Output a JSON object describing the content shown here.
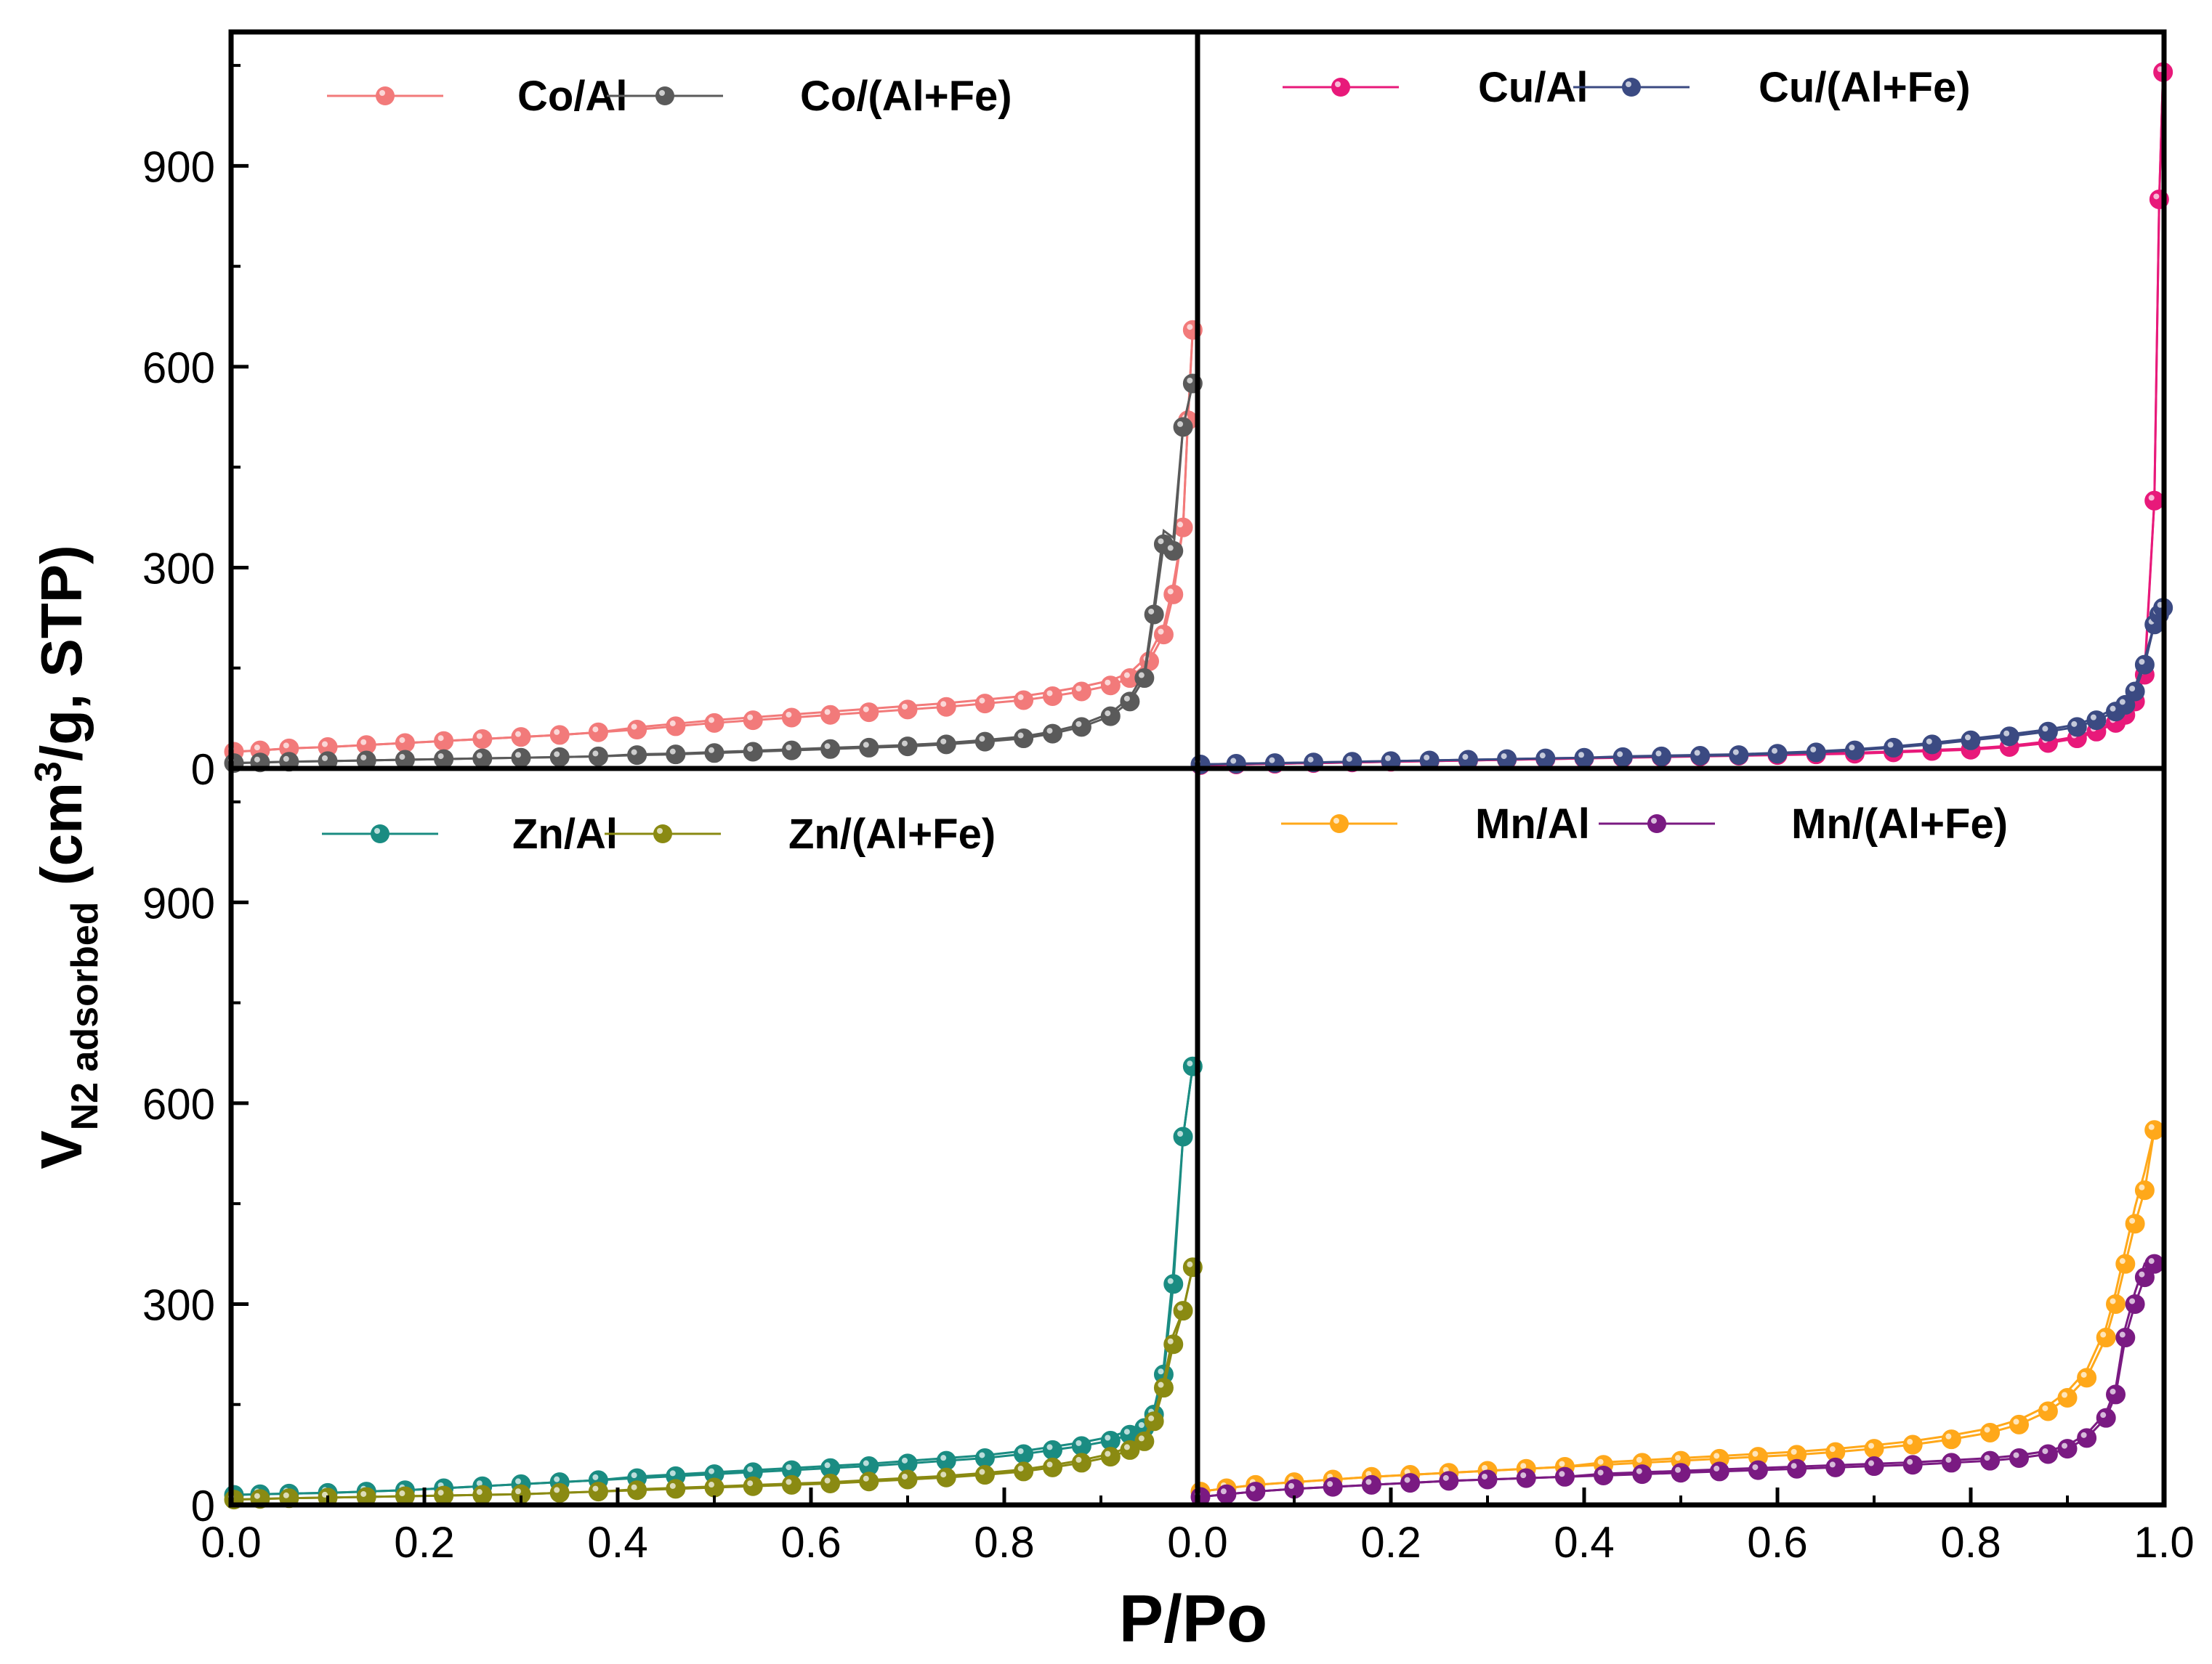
{
  "figure": {
    "xlabel": "P/Po",
    "ylabel_main": "V",
    "ylabel_sub": "N2 adsorbed",
    "ylabel_rest": " (cm",
    "ylabel_sup": "3",
    "ylabel_end": "/g, STP)"
  },
  "axes": {
    "x_ticks": [
      0.0,
      0.2,
      0.4,
      0.6,
      0.8,
      1.0
    ],
    "x_tick_labels_left": [
      "0.0",
      "0.2",
      "0.4",
      "0.6",
      "0.8",
      "0.0"
    ],
    "x_tick_labels_right": [
      "0.2",
      "0.4",
      "0.6",
      "0.8",
      "1.0"
    ],
    "y_ticks": [
      0,
      300,
      600,
      900
    ],
    "y_tick_labels": [
      "0",
      "300",
      "600",
      "900"
    ],
    "xlim": [
      0.0,
      1.0
    ],
    "ylim": [
      0,
      1100
    ]
  },
  "chart_data": [
    {
      "type": "line",
      "panel": "top-left",
      "title": "",
      "xlabel": "P/Po",
      "ylabel": "VN2 adsorbed (cm3/g, STP)",
      "xlim": [
        0.0,
        1.0
      ],
      "ylim": [
        0,
        1100
      ],
      "legend_position": "top",
      "series": [
        {
          "name": "Co/Al",
          "color": "#F27A7A",
          "x": [
            0.003,
            0.03,
            0.06,
            0.1,
            0.14,
            0.18,
            0.22,
            0.26,
            0.3,
            0.34,
            0.38,
            0.42,
            0.46,
            0.5,
            0.54,
            0.58,
            0.62,
            0.66,
            0.7,
            0.74,
            0.78,
            0.82,
            0.85,
            0.88,
            0.91,
            0.93,
            0.95,
            0.965,
            0.975,
            0.985,
            0.99,
            0.995
          ],
          "y": [
            25,
            27,
            30,
            32,
            35,
            38,
            41,
            44,
            47,
            50,
            54,
            58,
            63,
            68,
            72,
            76,
            80,
            84,
            88,
            92,
            97,
            102,
            108,
            115,
            124,
            135,
            160,
            200,
            260,
            360,
            520,
            655
          ]
        },
        {
          "name": "Co/(Al+Fe)",
          "color": "#5A5A5A",
          "x": [
            0.003,
            0.03,
            0.06,
            0.1,
            0.14,
            0.18,
            0.22,
            0.26,
            0.3,
            0.34,
            0.38,
            0.42,
            0.46,
            0.5,
            0.54,
            0.58,
            0.62,
            0.66,
            0.7,
            0.74,
            0.78,
            0.82,
            0.85,
            0.88,
            0.91,
            0.93,
            0.945,
            0.955,
            0.965,
            0.975,
            0.985,
            0.995
          ],
          "y": [
            8,
            9,
            10,
            11,
            12,
            13,
            14,
            15,
            16,
            17,
            18,
            20,
            21,
            23,
            25,
            27,
            29,
            31,
            33,
            36,
            40,
            45,
            52,
            62,
            78,
            100,
            135,
            230,
            335,
            325,
            510,
            575
          ]
        }
      ]
    },
    {
      "type": "line",
      "panel": "top-right",
      "title": "",
      "xlabel": "P/Po",
      "ylabel": "VN2 adsorbed (cm3/g, STP)",
      "xlim": [
        0.0,
        1.0
      ],
      "ylim": [
        0,
        1100
      ],
      "legend_position": "top",
      "series": [
        {
          "name": "Cu/Al",
          "color": "#E8197A",
          "x": [
            0.003,
            0.04,
            0.08,
            0.12,
            0.16,
            0.2,
            0.24,
            0.28,
            0.32,
            0.36,
            0.4,
            0.44,
            0.48,
            0.52,
            0.56,
            0.6,
            0.64,
            0.68,
            0.72,
            0.76,
            0.8,
            0.84,
            0.88,
            0.91,
            0.93,
            0.95,
            0.96,
            0.97,
            0.98,
            0.99,
            0.995,
            0.999
          ],
          "y": [
            5,
            6,
            7,
            8,
            9,
            10,
            11,
            12,
            13,
            14,
            15,
            16,
            17,
            18,
            19,
            20,
            21,
            22,
            24,
            26,
            28,
            32,
            38,
            45,
            55,
            68,
            80,
            100,
            140,
            400,
            850,
            1040
          ]
        },
        {
          "name": "Cu/(Al+Fe)",
          "color": "#3B4A82",
          "x": [
            0.003,
            0.04,
            0.08,
            0.12,
            0.16,
            0.2,
            0.24,
            0.28,
            0.32,
            0.36,
            0.4,
            0.44,
            0.48,
            0.52,
            0.56,
            0.6,
            0.64,
            0.68,
            0.72,
            0.76,
            0.8,
            0.84,
            0.88,
            0.91,
            0.93,
            0.95,
            0.96,
            0.97,
            0.98,
            0.99,
            0.995,
            0.999
          ],
          "y": [
            6,
            7,
            8,
            9,
            10,
            11,
            12,
            13,
            14,
            15,
            16,
            17,
            18,
            19,
            20,
            22,
            24,
            27,
            31,
            36,
            42,
            48,
            55,
            62,
            72,
            85,
            95,
            115,
            155,
            215,
            230,
            240
          ]
        }
      ]
    },
    {
      "type": "line",
      "panel": "bottom-left",
      "title": "",
      "xlabel": "P/Po",
      "ylabel": "VN2 adsorbed (cm3/g, STP)",
      "xlim": [
        0.0,
        1.0
      ],
      "ylim": [
        0,
        1100
      ],
      "legend_position": "top",
      "series": [
        {
          "name": "Zn/Al",
          "color": "#1A8C82",
          "x": [
            0.003,
            0.03,
            0.06,
            0.1,
            0.14,
            0.18,
            0.22,
            0.26,
            0.3,
            0.34,
            0.38,
            0.42,
            0.46,
            0.5,
            0.54,
            0.58,
            0.62,
            0.66,
            0.7,
            0.74,
            0.78,
            0.82,
            0.85,
            0.88,
            0.91,
            0.93,
            0.945,
            0.955,
            0.965,
            0.975,
            0.985,
            0.995
          ],
          "y": [
            15,
            16,
            17,
            18,
            20,
            22,
            25,
            28,
            31,
            34,
            37,
            40,
            43,
            46,
            49,
            52,
            55,
            58,
            62,
            66,
            70,
            76,
            82,
            88,
            96,
            105,
            115,
            135,
            195,
            330,
            550,
            655
          ]
        },
        {
          "name": "Zn/(Al+Fe)",
          "color": "#8A8A12",
          "x": [
            0.003,
            0.03,
            0.06,
            0.1,
            0.14,
            0.18,
            0.22,
            0.26,
            0.3,
            0.34,
            0.38,
            0.42,
            0.46,
            0.5,
            0.54,
            0.58,
            0.62,
            0.66,
            0.7,
            0.74,
            0.78,
            0.82,
            0.85,
            0.88,
            0.91,
            0.93,
            0.945,
            0.955,
            0.965,
            0.975,
            0.985,
            0.995
          ],
          "y": [
            8,
            9,
            10,
            11,
            12,
            13,
            14,
            15,
            16,
            18,
            20,
            22,
            24,
            26,
            28,
            30,
            32,
            35,
            38,
            41,
            45,
            50,
            56,
            63,
            72,
            82,
            95,
            125,
            175,
            240,
            290,
            355
          ]
        }
      ]
    },
    {
      "type": "line",
      "panel": "bottom-right",
      "title": "",
      "xlabel": "P/Po",
      "ylabel": "VN2 adsorbed (cm3/g, STP)",
      "xlim": [
        0.0,
        1.0
      ],
      "ylim": [
        0,
        1100
      ],
      "legend_position": "top",
      "series": [
        {
          "name": "Mn/Al",
          "color": "#FFA81A",
          "x": [
            0.003,
            0.03,
            0.06,
            0.1,
            0.14,
            0.18,
            0.22,
            0.26,
            0.3,
            0.34,
            0.38,
            0.42,
            0.46,
            0.5,
            0.54,
            0.58,
            0.62,
            0.66,
            0.7,
            0.74,
            0.78,
            0.82,
            0.85,
            0.88,
            0.9,
            0.92,
            0.94,
            0.95,
            0.96,
            0.97,
            0.98,
            0.99
          ],
          "y": [
            20,
            25,
            30,
            34,
            38,
            42,
            45,
            48,
            51,
            54,
            57,
            60,
            63,
            66,
            69,
            72,
            75,
            79,
            84,
            90,
            98,
            108,
            120,
            140,
            160,
            190,
            250,
            300,
            360,
            420,
            470,
            560
          ]
        },
        {
          "name": "Mn/(Al+Fe)",
          "color": "#7A1A82",
          "x": [
            0.003,
            0.03,
            0.06,
            0.1,
            0.14,
            0.18,
            0.22,
            0.26,
            0.3,
            0.34,
            0.38,
            0.42,
            0.46,
            0.5,
            0.54,
            0.58,
            0.62,
            0.66,
            0.7,
            0.74,
            0.78,
            0.82,
            0.85,
            0.88,
            0.9,
            0.92,
            0.94,
            0.95,
            0.96,
            0.97,
            0.98,
            0.99
          ],
          "y": [
            12,
            16,
            20,
            24,
            27,
            30,
            33,
            36,
            38,
            40,
            42,
            44,
            46,
            48,
            50,
            52,
            54,
            56,
            58,
            60,
            63,
            66,
            70,
            76,
            84,
            100,
            130,
            165,
            250,
            300,
            340,
            360
          ]
        }
      ]
    }
  ]
}
